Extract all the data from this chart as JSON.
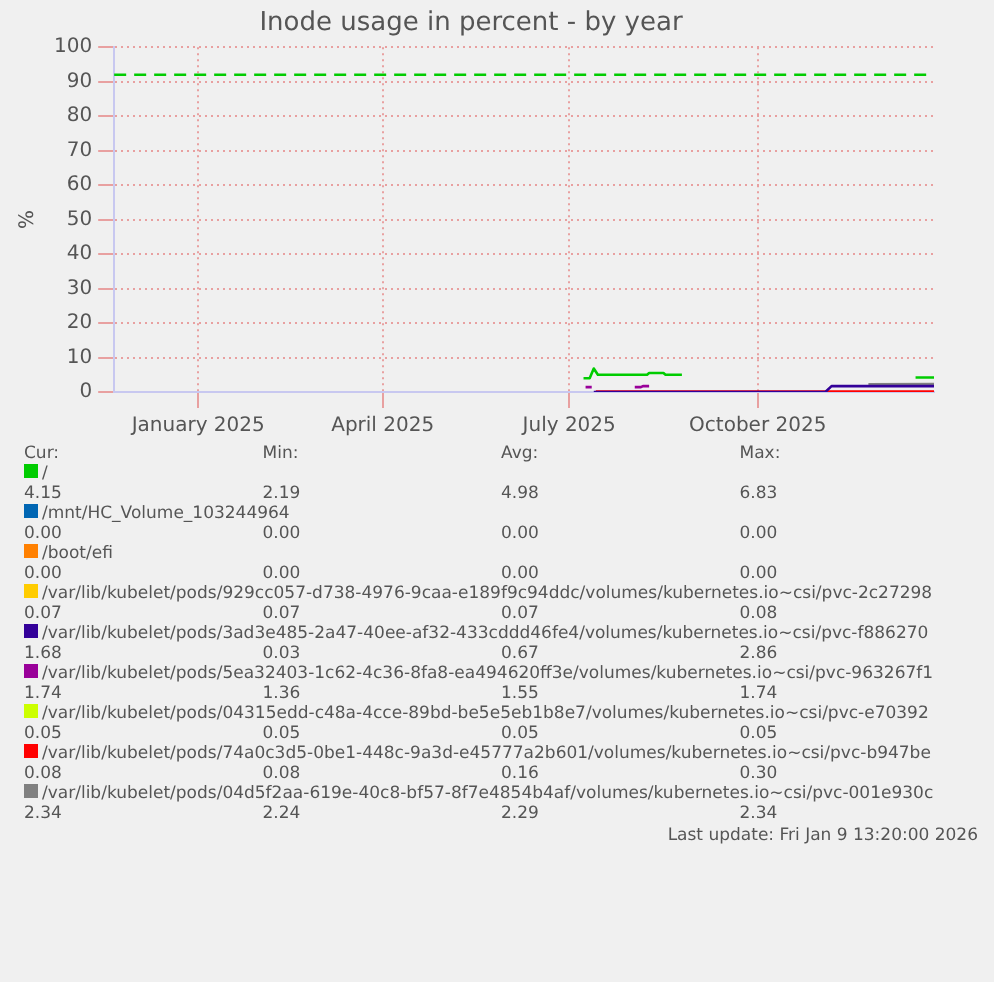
{
  "chart_data": {
    "type": "line",
    "title": "Inode usage in percent - by year",
    "ylabel": "%",
    "xlim": [
      "2024-12-05",
      "2026-01-09"
    ],
    "xticks": [
      {
        "value": "2025-01-15",
        "label": "January 2025"
      },
      {
        "value": "2025-04-15",
        "label": "April 2025"
      },
      {
        "value": "2025-07-15",
        "label": "July 2025"
      },
      {
        "value": "2025-10-15",
        "label": "October 2025"
      }
    ],
    "ylim": [
      0,
      100
    ],
    "yticks": [
      0,
      10,
      20,
      30,
      40,
      50,
      60,
      70,
      80,
      90,
      100
    ],
    "grid": true,
    "legend": "bottom",
    "marker": "none",
    "line_style": "solid",
    "ref_lines": [
      {
        "axis": "y",
        "value": 92,
        "color": "#00cc00",
        "line_style": "dashed"
      }
    ],
    "series": [
      {
        "name": "/",
        "color": "#00cc00",
        "x": [
          "2025-07-22",
          "2025-07-25",
          "2025-07-27",
          "2025-07-29",
          "2025-08-22",
          "2025-08-23",
          "2025-08-30",
          "2025-08-31",
          "2025-09-08",
          "2025-09-09",
          "2025-12-31",
          "2026-01-09"
        ],
        "values": [
          4,
          4,
          6.8,
          5,
          5,
          5.5,
          5.5,
          5,
          5,
          null,
          4.2,
          4.2
        ]
      },
      {
        "name": "/mnt/HC_Volume_103244964",
        "color": "#0066b3"
      },
      {
        "name": "/boot/efi",
        "color": "#ff8000"
      },
      {
        "name": "/var/lib/kubelet/pods/929cc057-d738-4976-9caa-e189f9c94ddc/volumes/kubernetes.io~csi/pvc-2c27298",
        "color": "#ffcc00"
      },
      {
        "name": "/var/lib/kubelet/pods/3ad3e485-2a47-40ee-af32-433cddd46fe4/volumes/kubernetes.io~csi/pvc-f886270",
        "color": "#330099",
        "x": [
          "2025-07-27",
          "2025-11-17",
          "2025-11-20",
          "2026-01-09"
        ],
        "values": [
          0,
          0,
          1.7,
          1.7
        ]
      },
      {
        "name": "/var/lib/kubelet/pods/5ea32403-1c62-4c36-8fa8-ea494620ff3e/volumes/kubernetes.io~csi/pvc-963267f1",
        "color": "#990099",
        "x": [
          "2025-07-23",
          "2025-07-26",
          "2025-07-27",
          "2025-08-16",
          "2025-08-19",
          "2025-08-20",
          "2025-08-23"
        ],
        "values": [
          1.4,
          1.4,
          null,
          1.4,
          1.4,
          1.7,
          1.7
        ]
      },
      {
        "name": "/var/lib/kubelet/pods/04315edd-c48a-4cce-89bd-be5e5eb1b8e7/volumes/kubernetes.io~csi/pvc-e70392",
        "color": "#ccff00"
      },
      {
        "name": "/var/lib/kubelet/pods/74a0c3d5-0be1-448c-9a3d-e45777a2b601/volumes/kubernetes.io~csi/pvc-b947be",
        "color": "#ff0000",
        "x": [
          "2025-07-28",
          "2026-01-09"
        ],
        "values": [
          0.1,
          0.1
        ]
      },
      {
        "name": "/var/lib/kubelet/pods/04d5f2aa-619e-40c8-bf57-8f7e4854b4af/volumes/kubernetes.io~csi/pvc-001e930c",
        "color": "#808080",
        "x": [
          "2025-12-08",
          "2026-01-09"
        ],
        "values": [
          2.2,
          2.3
        ]
      }
    ],
    "annotations": [
      "Cur:",
      "Min:",
      "Avg:",
      "Max:",
      "4.15",
      "2.19",
      "4.98",
      "6.83",
      "0.00",
      "0.00",
      "0.00",
      "0.00",
      "0.00",
      "0.00",
      "0.00",
      "0.00",
      "0.07",
      "0.07",
      "0.07",
      "0.08",
      "1.68",
      "0.03",
      "0.67",
      "2.86",
      "1.74",
      "1.36",
      "1.55",
      "1.74",
      "0.05",
      "0.05",
      "0.05",
      "0.05",
      "0.08",
      "0.08",
      "0.16",
      "0.30",
      "2.34",
      "2.24",
      "2.29",
      "2.34",
      "Last update: Fri Jan  9 13:20:00 2026"
    ]
  }
}
